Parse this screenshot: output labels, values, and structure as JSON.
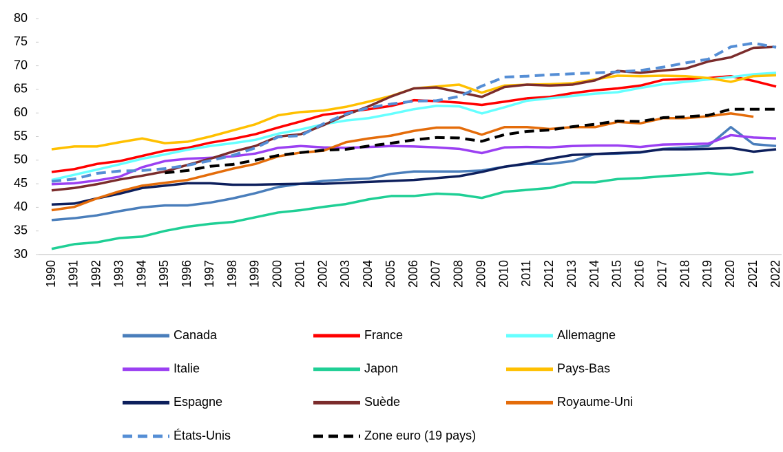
{
  "chart_data": {
    "type": "line",
    "x": [
      1990,
      1991,
      1992,
      1993,
      1994,
      1995,
      1996,
      1997,
      1998,
      1999,
      2000,
      2001,
      2002,
      2003,
      2004,
      2005,
      2006,
      2007,
      2008,
      2009,
      2010,
      2011,
      2012,
      2013,
      2014,
      2015,
      2016,
      2017,
      2018,
      2019,
      2020,
      2021,
      2022
    ],
    "xlim": [
      1990,
      2022
    ],
    "ylim": [
      30,
      80
    ],
    "yticks": [
      30,
      35,
      40,
      45,
      50,
      55,
      60,
      65,
      70,
      75,
      80
    ],
    "grid": false,
    "series": [
      {
        "name": "Canada",
        "color": "#4a7ebb",
        "dashed": false,
        "values": [
          37.3,
          37.7,
          38.3,
          39.2,
          40.0,
          40.4,
          40.4,
          41.0,
          41.9,
          43.0,
          44.3,
          45.0,
          45.6,
          45.9,
          46.1,
          47.1,
          47.6,
          47.6,
          47.6,
          47.8,
          48.6,
          49.2,
          49.2,
          49.8,
          51.3,
          51.4,
          51.6,
          52.4,
          52.7,
          53.0,
          57.0,
          53.4,
          53.0
        ]
      },
      {
        "name": "France",
        "color": "#ff0000",
        "dashed": false,
        "values": [
          47.5,
          48.1,
          49.2,
          49.8,
          50.9,
          52.0,
          52.6,
          53.7,
          54.5,
          55.5,
          56.9,
          58.2,
          59.6,
          60.2,
          60.8,
          61.5,
          62.7,
          62.5,
          62.2,
          61.7,
          62.4,
          63.1,
          63.4,
          64.2,
          64.8,
          65.2,
          65.8,
          67.0,
          67.2,
          67.4,
          67.8,
          66.8,
          65.6
        ]
      },
      {
        "name": "Allemagne",
        "color": "#66ffff",
        "dashed": false,
        "values": [
          45.8,
          46.9,
          48.0,
          49.1,
          50.3,
          51.2,
          52.2,
          53.0,
          53.6,
          54.3,
          55.6,
          56.5,
          57.6,
          58.4,
          58.9,
          59.8,
          60.8,
          61.5,
          61.4,
          59.9,
          61.2,
          62.6,
          63.1,
          63.6,
          64.1,
          64.4,
          65.3,
          66.1,
          66.6,
          67.1,
          67.6,
          68.2,
          68.5
        ]
      },
      {
        "name": "Italie",
        "color": "#9b40f2",
        "dashed": false,
        "values": [
          44.9,
          45.1,
          45.7,
          46.5,
          48.5,
          49.8,
          50.3,
          50.5,
          50.8,
          51.4,
          52.6,
          53.0,
          52.7,
          52.6,
          52.8,
          53.0,
          52.9,
          52.7,
          52.4,
          51.5,
          52.7,
          52.8,
          52.7,
          53.0,
          53.1,
          53.1,
          52.8,
          53.3,
          53.4,
          53.5,
          55.3,
          54.8,
          54.6
        ]
      },
      {
        "name": "Japon",
        "color": "#1fcf95",
        "dashed": false,
        "values": [
          31.2,
          32.2,
          32.6,
          33.5,
          33.8,
          35.0,
          35.9,
          36.5,
          36.9,
          37.9,
          38.9,
          39.4,
          40.1,
          40.7,
          41.7,
          42.4,
          42.4,
          42.9,
          42.7,
          42.0,
          43.3,
          43.7,
          44.1,
          45.3,
          45.3,
          46.0,
          46.2,
          46.6,
          46.9,
          47.3,
          46.9,
          47.5,
          null
        ]
      },
      {
        "name": "Pays-Bas",
        "color": "#ffc000",
        "dashed": false,
        "values": [
          52.3,
          52.9,
          52.9,
          53.8,
          54.6,
          53.6,
          53.9,
          55.0,
          56.3,
          57.6,
          59.5,
          60.2,
          60.5,
          61.3,
          62.4,
          63.6,
          65.2,
          65.6,
          66.0,
          64.3,
          65.8,
          66.0,
          66.1,
          66.3,
          67.1,
          67.9,
          67.8,
          67.9,
          67.8,
          67.4,
          66.6,
          67.8,
          68.0
        ]
      },
      {
        "name": "Espagne",
        "color": "#0d1f5c",
        "dashed": false,
        "values": [
          40.6,
          40.8,
          41.9,
          42.9,
          44.1,
          44.6,
          45.1,
          45.1,
          44.8,
          44.8,
          44.9,
          45.0,
          45.0,
          45.2,
          45.4,
          45.6,
          45.8,
          46.2,
          46.6,
          47.5,
          48.6,
          49.3,
          50.3,
          51.1,
          51.3,
          51.5,
          51.7,
          52.3,
          52.3,
          52.4,
          52.6,
          51.8,
          52.3
        ]
      },
      {
        "name": "Suède",
        "color": "#7b2c2c",
        "dashed": false,
        "values": [
          43.6,
          44.1,
          44.9,
          45.9,
          46.7,
          47.6,
          49.0,
          50.3,
          51.8,
          53.0,
          55.0,
          55.5,
          57.4,
          59.6,
          61.4,
          63.5,
          65.2,
          65.4,
          64.4,
          63.4,
          65.5,
          66.0,
          65.8,
          66.0,
          66.9,
          68.9,
          68.5,
          69.0,
          69.4,
          70.9,
          71.8,
          73.8,
          74.0
        ]
      },
      {
        "name": "Royaume-Uni",
        "color": "#e46c0a",
        "dashed": false,
        "values": [
          39.4,
          40.1,
          41.9,
          43.4,
          44.6,
          45.2,
          45.8,
          47.0,
          48.2,
          49.2,
          50.8,
          51.6,
          52.0,
          53.8,
          54.6,
          55.2,
          56.2,
          56.9,
          56.9,
          55.4,
          57.0,
          57.0,
          56.6,
          57.0,
          57.0,
          58.1,
          57.8,
          58.9,
          58.9,
          59.3,
          59.9,
          59.2,
          null
        ]
      },
      {
        "name": "États-Unis",
        "color": "#558ed5",
        "dashed": true,
        "values": [
          45.5,
          46.0,
          47.2,
          47.7,
          47.8,
          48.2,
          48.9,
          49.9,
          51.0,
          52.6,
          54.9,
          55.2,
          57.7,
          59.8,
          61.1,
          61.9,
          62.5,
          62.6,
          63.5,
          65.7,
          67.6,
          67.8,
          68.1,
          68.3,
          68.5,
          68.7,
          69.0,
          69.7,
          70.6,
          71.4,
          74.0,
          74.8,
          73.9
        ]
      },
      {
        "name": "Zone euro (19 pays)",
        "color": "#000000",
        "dashed": true,
        "values": [
          null,
          null,
          null,
          null,
          null,
          47.3,
          47.8,
          48.7,
          49.1,
          50.0,
          51.0,
          51.6,
          52.1,
          52.3,
          53.0,
          53.6,
          54.3,
          54.8,
          54.7,
          54.0,
          55.4,
          56.1,
          56.4,
          57.1,
          57.6,
          58.3,
          58.2,
          59.0,
          59.2,
          59.5,
          60.8,
          60.8,
          60.8
        ]
      }
    ]
  }
}
